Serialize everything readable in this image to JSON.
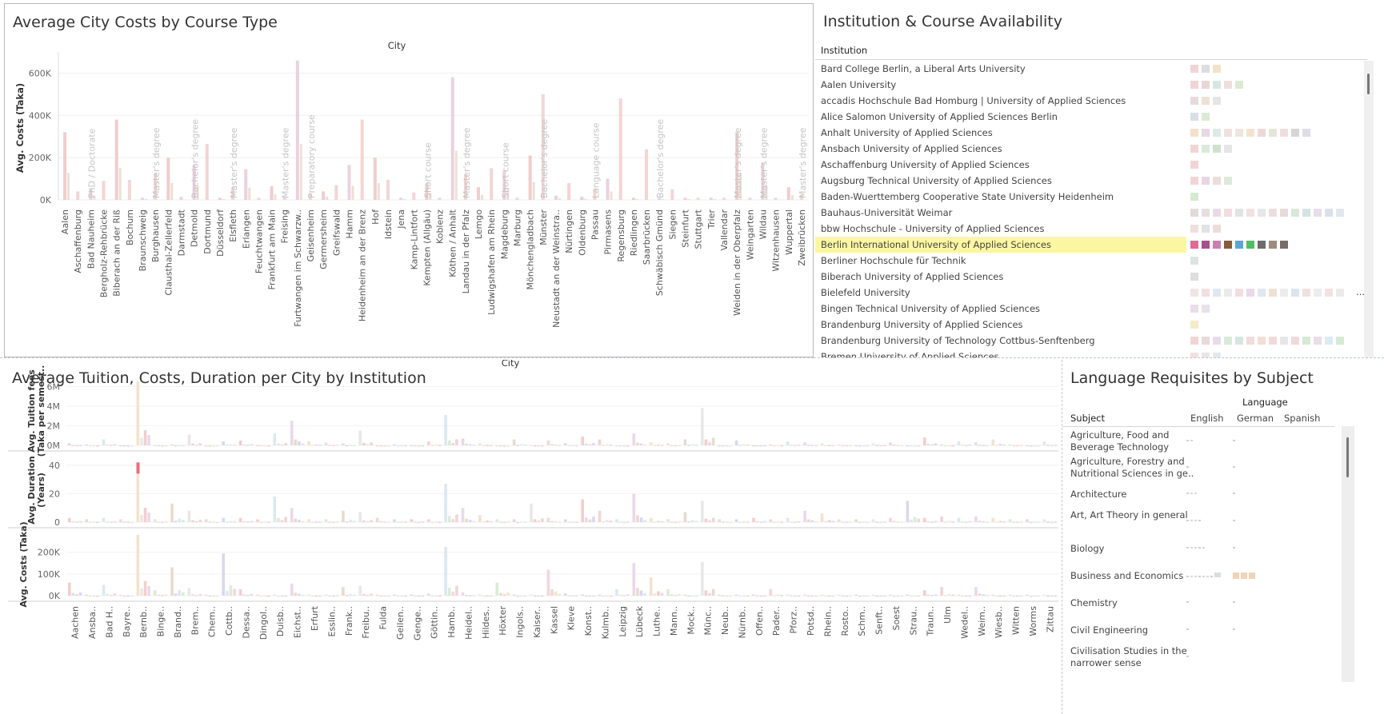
{
  "p1": {
    "title": "Average City Costs by Course Type",
    "col_header": "City",
    "y_axis_label": "Avg. Costs (Taka)",
    "y_ticks": [
      "0K",
      "200K",
      "400K",
      "600K"
    ],
    "cities": [
      "Aalen",
      "Aschaffenburg",
      "Bad Nauheim",
      "Bergholz-Rehbrücke",
      "Biberach an der Riß",
      "Bochum",
      "Braunschweig",
      "Burghausen",
      "Clausthal-Zellerfeld",
      "Darmstadt",
      "Detmold",
      "Dortmund",
      "Düsseldorf",
      "Elsfleth",
      "Erlangen",
      "Feuchtwangen",
      "Frankfurt am Main",
      "Freising",
      "Furtwangen im Schwarzw..",
      "Geisenheim",
      "Germersheim",
      "Greifswald",
      "Hamm",
      "Heidenheim an der Brenz",
      "Hof",
      "Idstein",
      "Jena",
      "Kamp-Lintfort",
      "Kempten (Allgäu)",
      "Koblenz",
      "Köthen / Anhalt",
      "Landau in der Pfalz",
      "Lemgo",
      "Ludwigshafen am Rhein",
      "Magdeburg",
      "Marburg",
      "Mönchengladbach",
      "Münster",
      "Neustadt an der Weinstra..",
      "Nürtingen",
      "Oldenburg",
      "Passau",
      "Pirmasens",
      "Regensburg",
      "Riedlingen",
      "Saarbrücken",
      "Schwäbisch Gmünd",
      "Siegen",
      "Steinfurt",
      "Stuttgart",
      "Trier",
      "Vallendar",
      "Weiden in der Oberpfalz",
      "Weingarten",
      "Wildau",
      "Witzenhausen",
      "Wuppertal",
      "Zweibrücken"
    ],
    "course_labels": [
      "PhD / Doctorate",
      "Master's degree",
      "Bachelor's degree",
      "Master's degree",
      "Master's degree",
      "Preparatory course",
      "Short course",
      "Master's degree",
      "Short course",
      "Bachelor's degree",
      "Language course",
      "Bachelor's degree",
      "Master's degree",
      "Master's degree",
      "Master's degree"
    ],
    "chart_data": {
      "type": "bar",
      "title": "Average City Costs by Course Type",
      "xlabel": "City",
      "ylabel": "Avg. Costs (Taka)",
      "ylim": [
        0,
        700000
      ],
      "series": [
        {
          "values": [
            320000,
            40000,
            55000,
            90000,
            380000,
            95000,
            10000,
            125000,
            200000,
            15000,
            165000,
            265000,
            10000,
            60000,
            145000,
            10000,
            65000,
            12000,
            660000,
            30000,
            40000,
            70000,
            165000,
            380000,
            200000,
            95000,
            10000,
            35000,
            80000,
            10000,
            580000,
            120000,
            60000,
            150000,
            140000,
            10000,
            210000,
            500000,
            20000,
            80000,
            15000,
            55000,
            100000,
            480000,
            10000,
            240000,
            10000,
            50000,
            10000,
            10000,
            10000,
            10000,
            320000,
            10000,
            175000,
            10000,
            60000,
            25000
          ]
        }
      ]
    }
  },
  "p2": {
    "title": "Institution & Course Availability",
    "col_header": "Institution",
    "rows": [
      {
        "name": " Bard College Berlin, a Liberal Arts University",
        "cells": [
          "#f3d4d4",
          "#dddddd",
          "#f2e3c8"
        ]
      },
      {
        "name": "Aalen University",
        "cells": [
          "#f3d4d4",
          "#e9d5d5",
          "#d7e6e2",
          "#f0dede",
          "#d9ecd3"
        ]
      },
      {
        "name": "accadis Hochschule Bad Homburg | University of Applied Sciences",
        "cells": [
          "#e6dada",
          "#efe1d3",
          "#e5e5e5"
        ]
      },
      {
        "name": "Alice Salomon University of Applied Sciences Berlin",
        "cells": [
          "#d9dfe8",
          "#dce9d5"
        ]
      },
      {
        "name": "Anhalt University of Applied Sciences",
        "cells": [
          "#f4e0cb",
          "#e7d6e4",
          "#dde9e5",
          "#f1e0e0",
          "#efe5df",
          "#f4e4cf",
          "#ebd9d9",
          "#e6e6d8",
          "#f0dde0",
          "#d6d6d6",
          "#dddde6"
        ]
      },
      {
        "name": "Ansbach University of Applied Sciences",
        "cells": [
          "#f3d4d4",
          "#d9ead9",
          "#cfe1cf",
          "#e5e5e5"
        ]
      },
      {
        "name": "Aschaffenburg University of Applied Sciences",
        "cells": [
          "#f3d4d4"
        ]
      },
      {
        "name": "Augsburg Technical University of Applied Sciences",
        "cells": [
          "#f3d4d4",
          "#e9d5e2",
          "#ecdcdc",
          "#dde9dc"
        ]
      },
      {
        "name": "Baden-Wuerttemberg Cooperative State University Heidenheim",
        "cells": [
          "#d6e9d1"
        ]
      },
      {
        "name": "Bauhaus-Universität Weimar",
        "cells": [
          "#e1dada",
          "#e6dede",
          "#ead9e4",
          "#f2dede",
          "#e3e3e3",
          "#f2e1e1",
          "#e6e6e6",
          "#eddede",
          "#e6dada",
          "#d8e7d8",
          "#d4e3df",
          "#e8dce8",
          "#d8e1ea",
          "#e0e7ee"
        ]
      },
      {
        "name": "bbw Hochschule - University of Applied Sciences",
        "cells": [
          "#f0dede",
          "#e2e2e2",
          "#ecdcdc"
        ]
      },
      {
        "name": "Berlin International University of Applied Sciences",
        "hl": true,
        "cells": [
          "#e06a93",
          "#a84f8f",
          "#c97fb0",
          "#8a5a3c",
          "#5ba6d6",
          "#4fbf63",
          "#6b6b6b",
          "#9c8b7e",
          "#7b6b6b"
        ]
      },
      {
        "name": "Berliner Hochschule für Technik",
        "cells": [
          "#dde4e0"
        ]
      },
      {
        "name": "Biberach University of Applied Sciences",
        "cells": [
          "#dedede"
        ]
      },
      {
        "name": "Bielefeld University",
        "cells": [
          "#f0e5e5",
          "#f3dede",
          "#e0e7ef",
          "#eaeaea",
          "#f3dede",
          "#e9d9e9",
          "#dfe7ef",
          "#efe1d4",
          "#ececec",
          "#d9e6ef",
          "#efe1e1",
          "#ededed",
          "#f4e1e1",
          "#eaeaea"
        ],
        "more": true
      },
      {
        "name": "Bingen Technical University of Applied Sciences",
        "cells": [
          "#e8dde8",
          "#e7e2ea"
        ]
      },
      {
        "name": "Brandenburg University of Applied Sciences",
        "cells": [
          "#f4ecc8"
        ]
      },
      {
        "name": "Brandenburg University of Technology Cottbus-Senftenberg",
        "cells": [
          "#f3d4d4",
          "#ead8d8",
          "#e8dce8",
          "#d9ead9",
          "#d5e6e0",
          "#efdcdc",
          "#efe0d5",
          "#f2dada",
          "#e6e6e6",
          "#efd9d9",
          "#d6e8d6",
          "#e9dde9",
          "#dbeaf3",
          "#d4ead4"
        ]
      },
      {
        "name": "Bremen University of Applied Sciences",
        "cells": [
          "#f3e0e0",
          "#e7e7e7",
          "#e3e9ee"
        ]
      }
    ]
  },
  "p3": {
    "title": "Average Tuition, Costs, Duration per City by Institution",
    "col_header": "City",
    "tuition_label_1": "Avg. Tuition fees",
    "tuition_label_2": "(Taka per semest..",
    "duration_label_1": "Avg. Duration",
    "duration_label_2": "(Years)",
    "costs_label": "Avg. Costs (Taka)",
    "tuition_ticks": [
      "0M",
      "2M",
      "4M",
      "6M"
    ],
    "duration_ticks": [
      "0",
      "20",
      "40"
    ],
    "costs_ticks": [
      "0K",
      "100K",
      "200K"
    ],
    "cities": [
      "Aachen",
      "Ansba..",
      "Bad H..",
      "Bayre..",
      "Bernb..",
      "Binge..",
      "Brand..",
      "Brem..",
      "Chem..",
      "Cottb..",
      "Dessa..",
      "Dingol..",
      "Duisb..",
      "Eichst..",
      "Erfurt",
      "Esslin..",
      "Frank..",
      "Freibu..",
      "Fulda",
      "Geilen..",
      "Genge..",
      "Göttin..",
      "Hamb..",
      "Heidel..",
      "Hildes..",
      "Höxter",
      "Ingols..",
      "Kaiser..",
      "Kassel",
      "Kleve",
      "Konst..",
      "Kulmb..",
      "Leipzig",
      "Lübeck",
      "Luthe..",
      "Mann..",
      "Mock..",
      "Münc..",
      "Neub..",
      "Nürnb..",
      "Offen..",
      "Pader..",
      "Pforz..",
      "Potsd..",
      "Rhein..",
      "Rosto..",
      "Schm..",
      "Senft..",
      "Soest",
      "Strau..",
      "Traun..",
      "Ulm",
      "Wedel..",
      "Weim..",
      "Wiesb..",
      "Witten",
      "Worms",
      "Zittau"
    ],
    "chart_data": [
      {
        "type": "bar",
        "ylabel": "Avg. Tuition fees (Taka per semest..",
        "xlabel": "City",
        "ylim": [
          0,
          7000000
        ],
        "series": [
          {
            "values": [
              200000,
              100000,
              600000,
              20000,
              6500000,
              50000,
              100000,
              1100000,
              20000,
              400000,
              500000,
              30000,
              1200000,
              2500000,
              400000,
              300000,
              200000,
              1500000,
              20000,
              100000,
              20000,
              400000,
              3100000,
              700000,
              200000,
              20000,
              600000,
              50000,
              500000,
              200000,
              900000,
              600000,
              20000,
              1200000,
              300000,
              200000,
              600000,
              3800000,
              20000,
              500000,
              20000,
              100000,
              400000,
              300000,
              200000,
              100000,
              20000,
              200000,
              300000,
              20000,
              800000,
              100000,
              400000,
              300000,
              600000,
              100000,
              20000,
              400000
            ]
          }
        ]
      },
      {
        "type": "bar",
        "ylabel": "Avg. Duration (Years)",
        "xlabel": "City",
        "ylim": [
          0,
          45
        ],
        "series": [
          {
            "values": [
              3,
              2,
              3,
              2,
              42,
              2,
              13,
              8,
              2,
              3,
              3,
              2,
              18,
              10,
              2,
              2,
              8,
              7,
              3,
              2,
              2,
              2,
              27,
              10,
              5,
              2,
              2,
              13,
              3,
              2,
              16,
              8,
              2,
              20,
              3,
              2,
              7,
              15,
              2,
              2,
              3,
              2,
              3,
              8,
              6,
              2,
              2,
              2,
              3,
              15,
              3,
              4,
              3,
              4,
              3,
              2,
              2,
              2
            ]
          }
        ]
      },
      {
        "type": "bar",
        "ylabel": "Avg. Costs (Taka)",
        "xlabel": "City",
        "ylim": [
          0,
          280000
        ],
        "series": [
          {
            "values": [
              60000,
              5000,
              50000,
              5000,
              280000,
              25000,
              130000,
              35000,
              5000,
              195000,
              30000,
              5000,
              5000,
              55000,
              5000,
              5000,
              40000,
              45000,
              5000,
              5000,
              5000,
              10000,
              225000,
              15000,
              5000,
              60000,
              5000,
              5000,
              120000,
              10000,
              5000,
              5000,
              30000,
              150000,
              85000,
              30000,
              5000,
              155000,
              5000,
              5000,
              5000,
              30000,
              5000,
              5000,
              5000,
              5000,
              5000,
              5000,
              5000,
              5000,
              25000,
              40000,
              5000,
              40000,
              5000,
              5000,
              5000,
              5000
            ]
          }
        ]
      }
    ]
  },
  "p4": {
    "title": "Language Requisites by Subject",
    "lang_header": "Language",
    "subject_header": "Subject",
    "columns": [
      "English",
      "German",
      "Spanish"
    ],
    "rows": [
      {
        "name": "Agriculture, Food and Beverage Technology",
        "en": 2,
        "de": 1,
        "es": 0
      },
      {
        "name": "Agriculture, Forestry and Nutritional Sciences in ge..",
        "en": 1,
        "de": 1,
        "es": 0
      },
      {
        "name": "Architecture",
        "en": 3,
        "de": 1,
        "es": 0
      },
      {
        "name": "Art, Art Theory in general",
        "en": 4,
        "de": 1,
        "es": 0
      },
      {
        "name": "Biology",
        "en": 5,
        "de": 1,
        "es": 0
      },
      {
        "name": "Business and Economics",
        "en": 8,
        "de": 3,
        "es": 0
      },
      {
        "name": "Chemistry",
        "en": 1,
        "de": 1,
        "es": 0
      },
      {
        "name": "Civil Engineering",
        "en": 1,
        "de": 1,
        "es": 0
      },
      {
        "name": "Civilisation Studies in the narrower sense",
        "en": 1,
        "de": 0,
        "es": 0
      }
    ]
  },
  "colors": {
    "pale_palette": [
      "#f3c8c8",
      "#efd0d0",
      "#d8e6f0",
      "#e8d4e8",
      "#f4dfc6",
      "#d6ead2",
      "#e4d7c8",
      "#e6e6e6",
      "#f1d1dc",
      "#d9d2ec"
    ]
  }
}
